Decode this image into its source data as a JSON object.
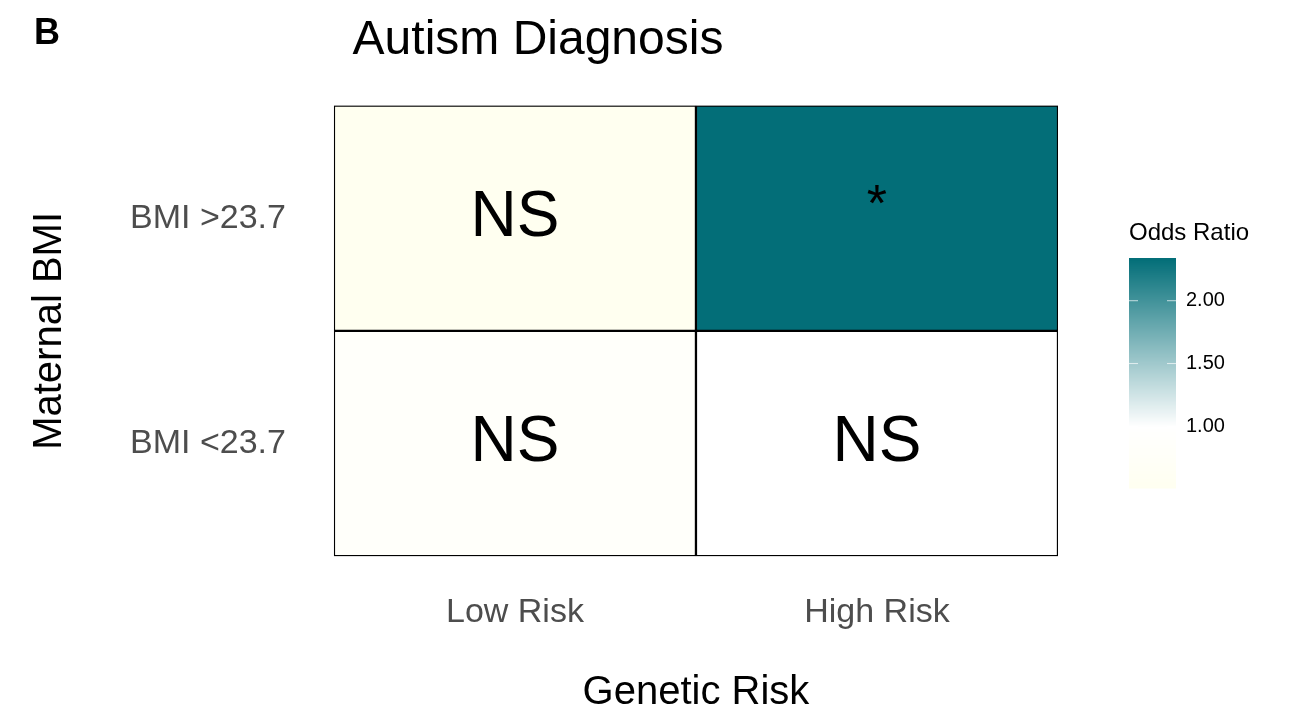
{
  "chart_data": {
    "type": "heatmap",
    "title": "Autism Diagnosis",
    "xlabel": "Genetic Risk",
    "ylabel": "Maternal BMI",
    "clabel": "Odds Ratio",
    "categories": [
      "Low Risk",
      "High Risk"
    ],
    "y_categories": [
      "BMI >23.7",
      "BMI <23.7"
    ],
    "cells": [
      [
        0.51,
        2.34
      ],
      [
        0.85,
        1.0
      ]
    ],
    "cell_labels": [
      [
        "NS",
        "*"
      ],
      [
        "NS",
        "NS"
      ]
    ],
    "clim": [
      0.51,
      2.34
    ],
    "cticks": [
      {
        "value": 1.0,
        "label": "1.00"
      },
      {
        "value": 1.5,
        "label": "1.50"
      },
      {
        "value": 2.0,
        "label": "2.00"
      }
    ],
    "annotations": [
      "B"
    ]
  }
}
